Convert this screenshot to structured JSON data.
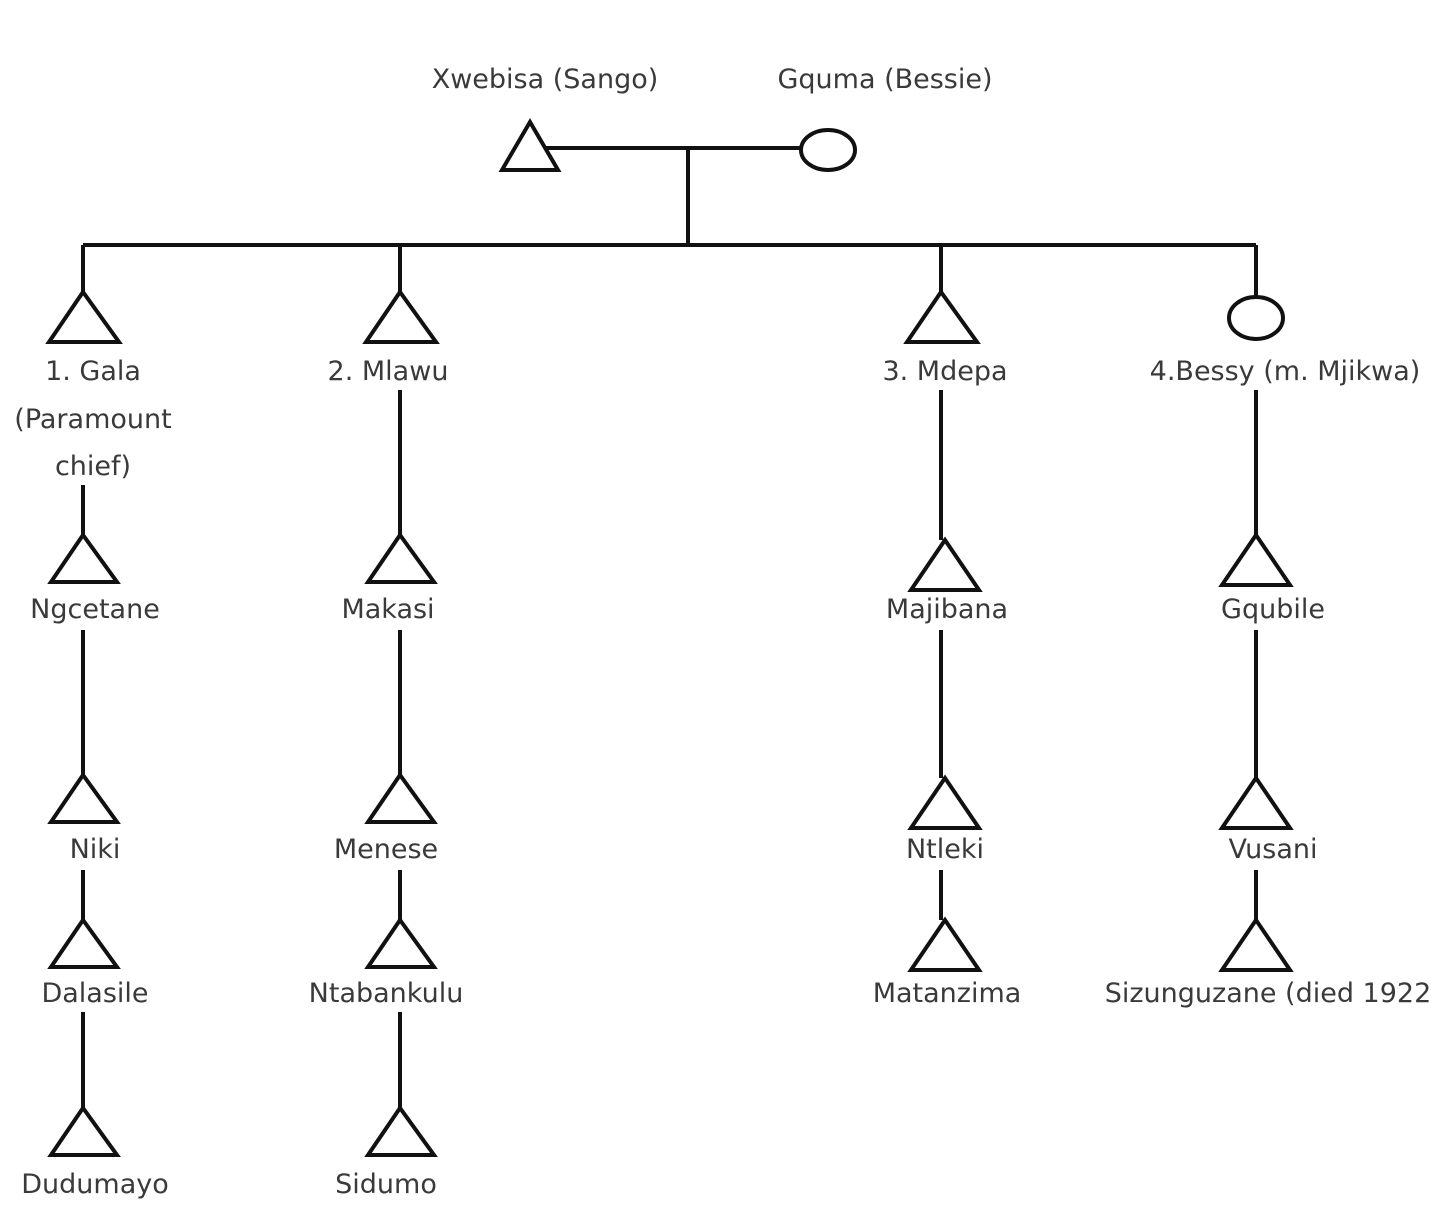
{
  "parents": {
    "father": "Xwebisa (Sango)",
    "mother": "Gquma (Bessie)"
  },
  "children": [
    {
      "label_lines": [
        "1. Gala",
        "(Paramount",
        "chief)"
      ],
      "sex": "male",
      "descendants": [
        "Ngcetane",
        "Niki",
        "Dalasile",
        "Dudumayo"
      ]
    },
    {
      "label_lines": [
        "2. Mlawu"
      ],
      "sex": "male",
      "descendants": [
        "Makasi",
        "Menese",
        "Ntabankulu",
        "Sidumo"
      ]
    },
    {
      "label_lines": [
        "3. Mdepa"
      ],
      "sex": "male",
      "descendants": [
        "Majibana",
        "Ntleki",
        "Matanzima"
      ]
    },
    {
      "label_lines": [
        "4.Bessy (m. Mjikwa)"
      ],
      "sex": "female",
      "descendants": [
        "Gqubile",
        "Vusani",
        "Sizunguzane (died 1922"
      ]
    }
  ],
  "legend": {
    "male": "triangle",
    "female": "circle"
  }
}
